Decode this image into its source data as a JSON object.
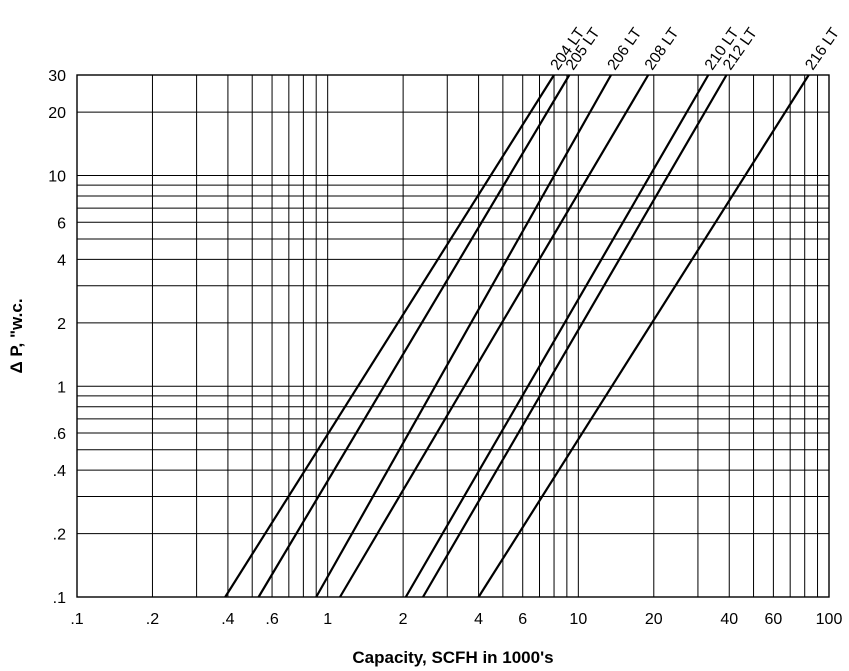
{
  "chart_data": {
    "type": "line",
    "xscale": "log",
    "yscale": "log",
    "xlim": [
      0.1,
      100
    ],
    "ylim": [
      0.1,
      30
    ],
    "xlabel": "Capacity, SCFH in 1000's",
    "ylabel": "Δ P, \"w.c.",
    "grid": true,
    "x_ticks": [
      {
        "value": 0.1,
        "label": ".1"
      },
      {
        "value": 0.2,
        "label": ".2"
      },
      {
        "value": 0.4,
        "label": ".4"
      },
      {
        "value": 0.6,
        "label": ".6"
      },
      {
        "value": 1,
        "label": "1"
      },
      {
        "value": 2,
        "label": "2"
      },
      {
        "value": 4,
        "label": "4"
      },
      {
        "value": 6,
        "label": "6"
      },
      {
        "value": 10,
        "label": "10"
      },
      {
        "value": 20,
        "label": "20"
      },
      {
        "value": 40,
        "label": "40"
      },
      {
        "value": 60,
        "label": "60"
      },
      {
        "value": 100,
        "label": "100"
      }
    ],
    "y_ticks": [
      {
        "value": 0.1,
        "label": ".1"
      },
      {
        "value": 0.2,
        "label": ".2"
      },
      {
        "value": 0.4,
        "label": ".4"
      },
      {
        "value": 0.6,
        "label": ".6"
      },
      {
        "value": 1,
        "label": "1"
      },
      {
        "value": 2,
        "label": "2"
      },
      {
        "value": 4,
        "label": "4"
      },
      {
        "value": 6,
        "label": "6"
      },
      {
        "value": 10,
        "label": "10"
      },
      {
        "value": 20,
        "label": "20"
      },
      {
        "value": 30,
        "label": "30"
      }
    ],
    "x_gridlines": [
      0.2,
      0.3,
      0.4,
      0.5,
      0.6,
      0.7,
      0.8,
      0.9,
      1,
      2,
      3,
      4,
      5,
      6,
      7,
      8,
      9,
      10,
      20,
      30,
      40,
      50,
      60,
      70,
      80,
      90
    ],
    "y_gridlines": [
      0.2,
      0.3,
      0.4,
      0.5,
      0.6,
      0.7,
      0.8,
      0.9,
      1,
      2,
      3,
      4,
      5,
      6,
      7,
      8,
      9,
      10,
      20
    ],
    "series": [
      {
        "name": "204 LT",
        "points": [
          [
            0.39,
            0.1
          ],
          [
            8.0,
            30
          ]
        ]
      },
      {
        "name": "205 LT",
        "points": [
          [
            0.53,
            0.1
          ],
          [
            9.2,
            30
          ]
        ]
      },
      {
        "name": "206 LT",
        "points": [
          [
            0.9,
            0.1
          ],
          [
            13.5,
            30
          ]
        ]
      },
      {
        "name": "208 LT",
        "points": [
          [
            1.12,
            0.1
          ],
          [
            19.0,
            30
          ]
        ]
      },
      {
        "name": "210 LT",
        "points": [
          [
            2.05,
            0.1
          ],
          [
            33.0,
            30
          ]
        ]
      },
      {
        "name": "212 LT",
        "points": [
          [
            2.4,
            0.1
          ],
          [
            39.0,
            30
          ]
        ]
      },
      {
        "name": "216 LT",
        "points": [
          [
            4.0,
            0.1
          ],
          [
            83.0,
            30
          ]
        ]
      }
    ]
  }
}
